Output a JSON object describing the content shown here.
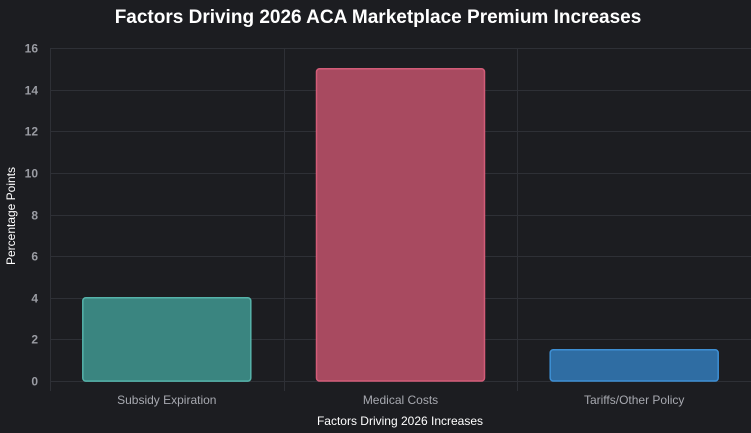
{
  "chart_data": {
    "type": "bar",
    "title": "Factors Driving 2026 ACA Marketplace Premium Increases",
    "xlabel": "Factors Driving 2026 Increases",
    "ylabel": "Percentage Points",
    "categories": [
      "Subsidy Expiration",
      "Medical Costs",
      "Tariffs/Other Policy"
    ],
    "values": [
      4,
      15,
      1.5
    ],
    "ylim": [
      0,
      16
    ],
    "yticks": [
      "0",
      "2",
      "4",
      "6",
      "8",
      "10",
      "12",
      "14",
      "16"
    ],
    "grid": true,
    "colors": {
      "background": "#1c1d21",
      "bars": [
        "#3a8580",
        "#a84a60",
        "#2f6da3"
      ],
      "bar_borders": [
        "#56b3aa",
        "#d25c78",
        "#3e8fd4"
      ]
    }
  }
}
